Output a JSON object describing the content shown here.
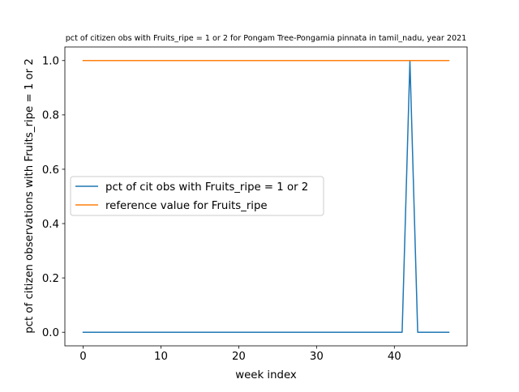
{
  "chart_data": {
    "type": "line",
    "title": "pct of citizen obs with Fruits_ripe = 1 or 2 for Pongam Tree-Pongamia pinnata in tamil_nadu, year 2021",
    "xlabel": "week index",
    "ylabel": "pct of citizen observations with Fruits_ripe = 1 or 2",
    "xlim": [
      -2.35,
      49.35
    ],
    "ylim": [
      -0.05,
      1.05
    ],
    "xticks": [
      0,
      10,
      20,
      30,
      40
    ],
    "xtick_labels": [
      "0",
      "10",
      "20",
      "30",
      "40"
    ],
    "yticks": [
      0.0,
      0.2,
      0.4,
      0.6,
      0.8,
      1.0
    ],
    "ytick_labels": [
      "0.0",
      "0.2",
      "0.4",
      "0.6",
      "0.8",
      "1.0"
    ],
    "grid": false,
    "legend_position": "center-left",
    "series": [
      {
        "name": "pct of cit obs with Fruits_ripe = 1 or 2",
        "color": "#1f77b4",
        "x": [
          0,
          1,
          2,
          3,
          4,
          5,
          6,
          7,
          8,
          9,
          10,
          11,
          12,
          13,
          14,
          15,
          16,
          17,
          18,
          19,
          20,
          21,
          22,
          23,
          24,
          25,
          26,
          27,
          28,
          29,
          30,
          31,
          32,
          33,
          34,
          35,
          36,
          37,
          38,
          39,
          40,
          41,
          42,
          43,
          44,
          45,
          46,
          47
        ],
        "y": [
          0,
          0,
          0,
          0,
          0,
          0,
          0,
          0,
          0,
          0,
          0,
          0,
          0,
          0,
          0,
          0,
          0,
          0,
          0,
          0,
          0,
          0,
          0,
          0,
          0,
          0,
          0,
          0,
          0,
          0,
          0,
          0,
          0,
          0,
          0,
          0,
          0,
          0,
          0,
          0,
          0,
          0,
          1,
          0,
          0,
          0,
          0,
          0
        ]
      },
      {
        "name": "reference value for Fruits_ripe",
        "color": "#ff7f0e",
        "x": [
          0,
          47
        ],
        "y": [
          1,
          1
        ]
      }
    ]
  }
}
